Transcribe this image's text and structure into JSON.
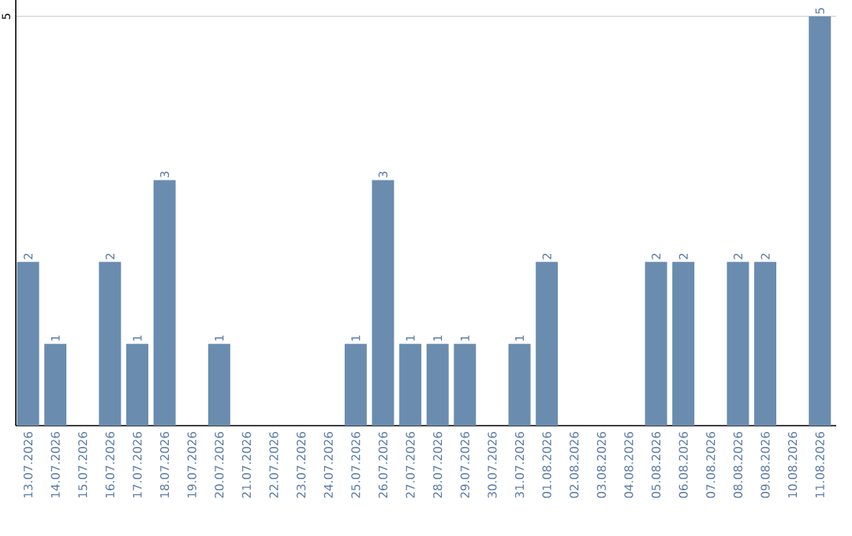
{
  "chart_data": {
    "type": "bar",
    "categories": [
      "13.07.2026",
      "14.07.2026",
      "15.07.2026",
      "16.07.2026",
      "17.07.2026",
      "18.07.2026",
      "19.07.2026",
      "20.07.2026",
      "21.07.2026",
      "22.07.2026",
      "23.07.2026",
      "24.07.2026",
      "25.07.2026",
      "26.07.2026",
      "27.07.2026",
      "28.07.2026",
      "29.07.2026",
      "30.07.2026",
      "31.07.2026",
      "01.08.2026",
      "02.08.2026",
      "03.08.2026",
      "04.08.2026",
      "05.08.2026",
      "06.08.2026",
      "07.08.2026",
      "08.08.2026",
      "09.08.2026",
      "10.08.2026",
      "11.08.2026"
    ],
    "values": [
      2,
      1,
      0,
      2,
      1,
      3,
      0,
      1,
      0,
      0,
      0,
      0,
      1,
      3,
      1,
      1,
      1,
      0,
      1,
      2,
      0,
      0,
      0,
      2,
      2,
      0,
      2,
      2,
      0,
      5
    ],
    "value_labels": [
      "2",
      "1",
      null,
      "2",
      "1",
      "3",
      null,
      "1",
      null,
      null,
      null,
      null,
      "1",
      "3",
      "1",
      "1",
      "1",
      null,
      "1",
      "2",
      null,
      null,
      null,
      "2",
      "2",
      null,
      "2",
      "2",
      null,
      "5"
    ],
    "color": "#6a8caf",
    "ylim": [
      0,
      5.2
    ],
    "yticks": [
      5
    ],
    "grid": "y"
  }
}
